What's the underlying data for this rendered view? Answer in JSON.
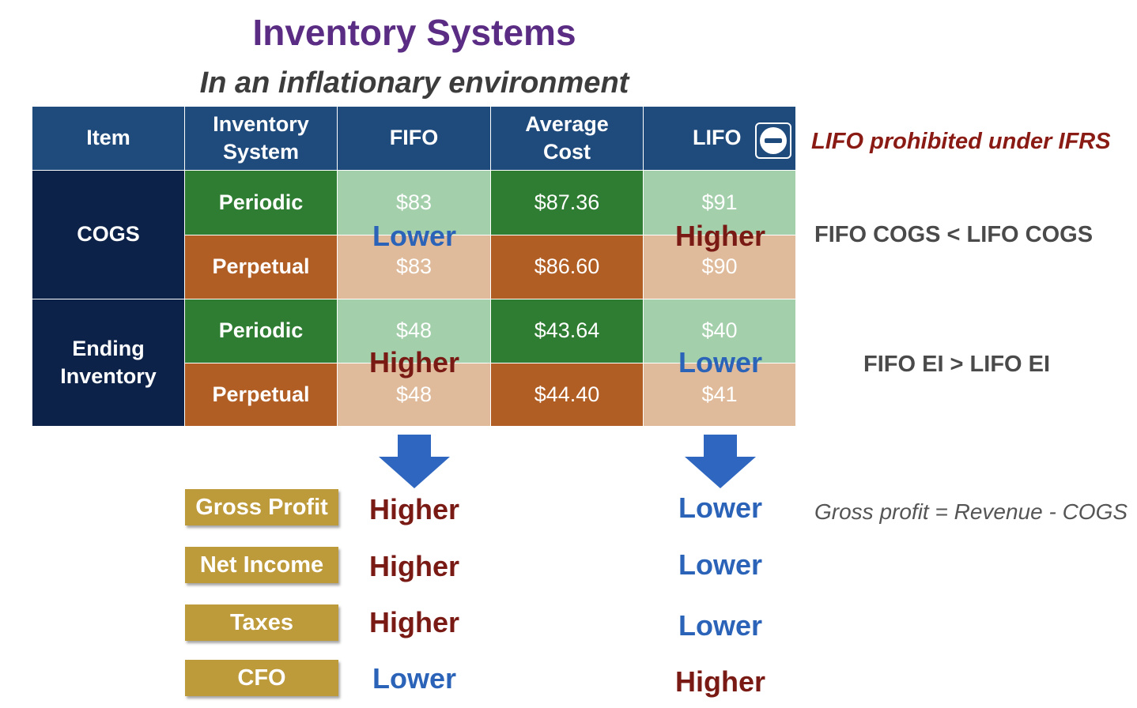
{
  "title": "Inventory Systems",
  "subtitle": "In an inflationary environment",
  "table": {
    "headers": {
      "item": "Item",
      "system": "Inventory\nSystem",
      "fifo": "FIFO",
      "average": "Average\nCost",
      "lifo": "LIFO"
    },
    "cogs": {
      "label": "COGS",
      "periodic": {
        "system": "Periodic",
        "fifo": "$83",
        "average": "$87.36",
        "lifo": "$91"
      },
      "perpetual": {
        "system": "Perpetual",
        "fifo": "$83",
        "average": "$86.60",
        "lifo": "$90"
      },
      "fifo_overlay": "Lower",
      "lifo_overlay": "Higher"
    },
    "ending_inventory": {
      "label": "Ending\nInventory",
      "periodic": {
        "system": "Periodic",
        "fifo": "$48",
        "average": "$43.64",
        "lifo": "$40"
      },
      "perpetual": {
        "system": "Perpetual",
        "fifo": "$48",
        "average": "$44.40",
        "lifo": "$41"
      },
      "fifo_overlay": "Higher",
      "lifo_overlay": "Lower"
    }
  },
  "notes": {
    "lifo_ifrs": "LIFO prohibited under IFRS",
    "cogs_compare": "FIFO COGS < LIFO COGS",
    "ei_compare": "FIFO EI > LIFO EI",
    "gross_profit_formula": "Gross profit = Revenue - COGS"
  },
  "impacts": [
    {
      "label": "Gross Profit",
      "fifo": "Higher",
      "lifo": "Lower"
    },
    {
      "label": "Net Income",
      "fifo": "Higher",
      "lifo": "Lower"
    },
    {
      "label": "Taxes",
      "fifo": "Higher",
      "lifo": "Lower"
    },
    {
      "label": "CFO",
      "fifo": "Lower",
      "lifo": "Higher"
    }
  ],
  "icons": {
    "lifo_badge": "minus-circle-icon",
    "arrows": "down-arrow-icon"
  },
  "colors": {
    "title": "#5b2c83",
    "header": "#1f4a7c",
    "navy": "#0d2249",
    "green": "#2f7d32",
    "orange": "#b15e25",
    "higher": "#7a1a14",
    "lower": "#2a63b8",
    "label_box": "#bd9a3a"
  }
}
